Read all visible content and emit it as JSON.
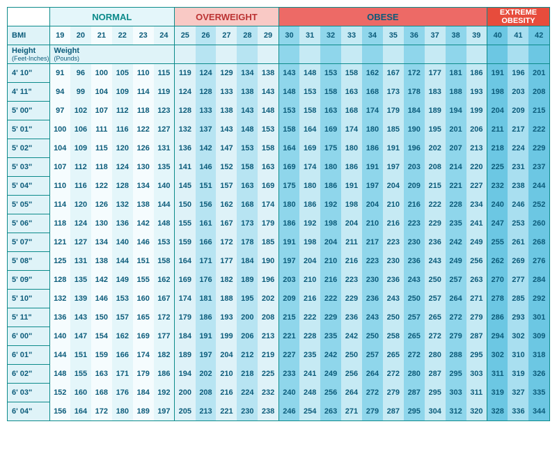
{
  "type": "table",
  "title": "BMI by Height and Weight",
  "categories": [
    {
      "key": "normal",
      "label": "NORMAL",
      "bg": "#e4f6fa",
      "fg": "#0b8a8a",
      "span": 6
    },
    {
      "key": "over",
      "label": "OVERWEIGHT",
      "bg": "#f9c9c5",
      "fg": "#b33",
      "span": 5
    },
    {
      "key": "obese",
      "label": "OBESE",
      "bg": "#ed6a66",
      "fg": "#0b5b7a",
      "span": 10
    },
    {
      "key": "ext",
      "label": "EXTREME OBESITY",
      "bg": "#e74c3c",
      "fg": "#ffffff",
      "span": 3
    }
  ],
  "bmi_label": "BMI",
  "height_label": "Height",
  "height_sub": "(Feet-Inches)",
  "weight_label": "Weight",
  "weight_sub": "(Pounds)",
  "bmi_values": [
    19,
    20,
    21,
    22,
    23,
    24,
    25,
    26,
    27,
    28,
    29,
    30,
    31,
    32,
    33,
    34,
    35,
    36,
    37,
    38,
    39,
    40,
    41,
    42
  ],
  "col_category": [
    "normal",
    "normal",
    "normal",
    "normal",
    "normal",
    "normal",
    "over",
    "over",
    "over",
    "over",
    "over",
    "obese",
    "obese",
    "obese",
    "obese",
    "obese",
    "obese",
    "obese",
    "obese",
    "obese",
    "obese",
    "ext",
    "ext",
    "ext"
  ],
  "heights": [
    "4' 10\"",
    "4' 11\"",
    "5' 00\"",
    "5' 01\"",
    "5' 02\"",
    "5' 03\"",
    "5' 04\"",
    "5' 05\"",
    "5' 06\"",
    "5' 07\"",
    "5' 08\"",
    "5' 09\"",
    "5' 10\"",
    "5' 11\"",
    "6' 00\"",
    "6' 01\"",
    "6' 02\"",
    "6' 03\"",
    "6' 04\""
  ],
  "rows": [
    [
      91,
      96,
      100,
      105,
      110,
      115,
      119,
      124,
      129,
      134,
      138,
      143,
      148,
      153,
      158,
      162,
      167,
      172,
      177,
      181,
      186,
      191,
      196,
      201
    ],
    [
      94,
      99,
      104,
      109,
      114,
      119,
      124,
      128,
      133,
      138,
      143,
      148,
      153,
      158,
      163,
      168,
      173,
      178,
      183,
      188,
      193,
      198,
      203,
      208
    ],
    [
      97,
      102,
      107,
      112,
      118,
      123,
      128,
      133,
      138,
      143,
      148,
      153,
      158,
      163,
      168,
      174,
      179,
      184,
      189,
      194,
      199,
      204,
      209,
      215
    ],
    [
      100,
      106,
      111,
      116,
      122,
      127,
      132,
      137,
      143,
      148,
      153,
      158,
      164,
      169,
      174,
      180,
      185,
      190,
      195,
      201,
      206,
      211,
      217,
      222
    ],
    [
      104,
      109,
      115,
      120,
      126,
      131,
      136,
      142,
      147,
      153,
      158,
      164,
      169,
      175,
      180,
      186,
      191,
      196,
      202,
      207,
      213,
      218,
      224,
      229
    ],
    [
      107,
      112,
      118,
      124,
      130,
      135,
      141,
      146,
      152,
      158,
      163,
      169,
      174,
      180,
      186,
      191,
      197,
      203,
      208,
      214,
      220,
      225,
      231,
      237
    ],
    [
      110,
      116,
      122,
      128,
      134,
      140,
      145,
      151,
      157,
      163,
      169,
      175,
      180,
      186,
      191,
      197,
      204,
      209,
      215,
      221,
      227,
      232,
      238,
      244
    ],
    [
      114,
      120,
      126,
      132,
      138,
      144,
      150,
      156,
      162,
      168,
      174,
      180,
      186,
      192,
      198,
      204,
      210,
      216,
      222,
      228,
      234,
      240,
      246,
      252
    ],
    [
      118,
      124,
      130,
      136,
      142,
      148,
      155,
      161,
      167,
      173,
      179,
      186,
      192,
      198,
      204,
      210,
      216,
      223,
      229,
      235,
      241,
      247,
      253,
      260
    ],
    [
      121,
      127,
      134,
      140,
      146,
      153,
      159,
      166,
      172,
      178,
      185,
      191,
      198,
      204,
      211,
      217,
      223,
      230,
      236,
      242,
      249,
      255,
      261,
      268
    ],
    [
      125,
      131,
      138,
      144,
      151,
      158,
      164,
      171,
      177,
      184,
      190,
      197,
      204,
      210,
      216,
      223,
      230,
      236,
      243,
      249,
      256,
      262,
      269,
      276
    ],
    [
      128,
      135,
      142,
      149,
      155,
      162,
      169,
      176,
      182,
      189,
      196,
      203,
      210,
      216,
      223,
      230,
      236,
      243,
      250,
      257,
      263,
      270,
      277,
      284
    ],
    [
      132,
      139,
      146,
      153,
      160,
      167,
      174,
      181,
      188,
      195,
      202,
      209,
      216,
      222,
      229,
      236,
      243,
      250,
      257,
      264,
      271,
      278,
      285,
      292
    ],
    [
      136,
      143,
      150,
      157,
      165,
      172,
      179,
      186,
      193,
      200,
      208,
      215,
      222,
      229,
      236,
      243,
      250,
      257,
      265,
      272,
      279,
      286,
      293,
      301
    ],
    [
      140,
      147,
      154,
      162,
      169,
      177,
      184,
      191,
      199,
      206,
      213,
      221,
      228,
      235,
      242,
      250,
      258,
      265,
      272,
      279,
      287,
      294,
      302,
      309
    ],
    [
      144,
      151,
      159,
      166,
      174,
      182,
      189,
      197,
      204,
      212,
      219,
      227,
      235,
      242,
      250,
      257,
      265,
      272,
      280,
      288,
      295,
      302,
      310,
      318
    ],
    [
      148,
      155,
      163,
      171,
      179,
      186,
      194,
      202,
      210,
      218,
      225,
      233,
      241,
      249,
      256,
      264,
      272,
      280,
      287,
      295,
      303,
      311,
      319,
      326
    ],
    [
      152,
      160,
      168,
      176,
      184,
      192,
      200,
      208,
      216,
      224,
      232,
      240,
      248,
      256,
      264,
      272,
      279,
      287,
      295,
      303,
      311,
      319,
      327,
      335
    ],
    [
      156,
      164,
      172,
      180,
      189,
      197,
      205,
      213,
      221,
      230,
      238,
      246,
      254,
      263,
      271,
      279,
      287,
      295,
      304,
      312,
      320,
      328,
      336,
      344
    ]
  ],
  "colors": {
    "border": "#0b8a8a",
    "text": "#0b5b7a",
    "normal_a": "#e4f6fa",
    "normal_b": "#f5fcfe",
    "over_a": "#b7e4f2",
    "over_b": "#def2f8",
    "obese_a": "#8fd6eb",
    "obese_b": "#c6eaf4",
    "ext_a": "#6cc7e3",
    "ext_b": "#a9dff0"
  },
  "col_widths": {
    "header": 60,
    "normal": 30,
    "over": 30,
    "obese": 30,
    "ext": 30
  },
  "font_size_pt": 11
}
